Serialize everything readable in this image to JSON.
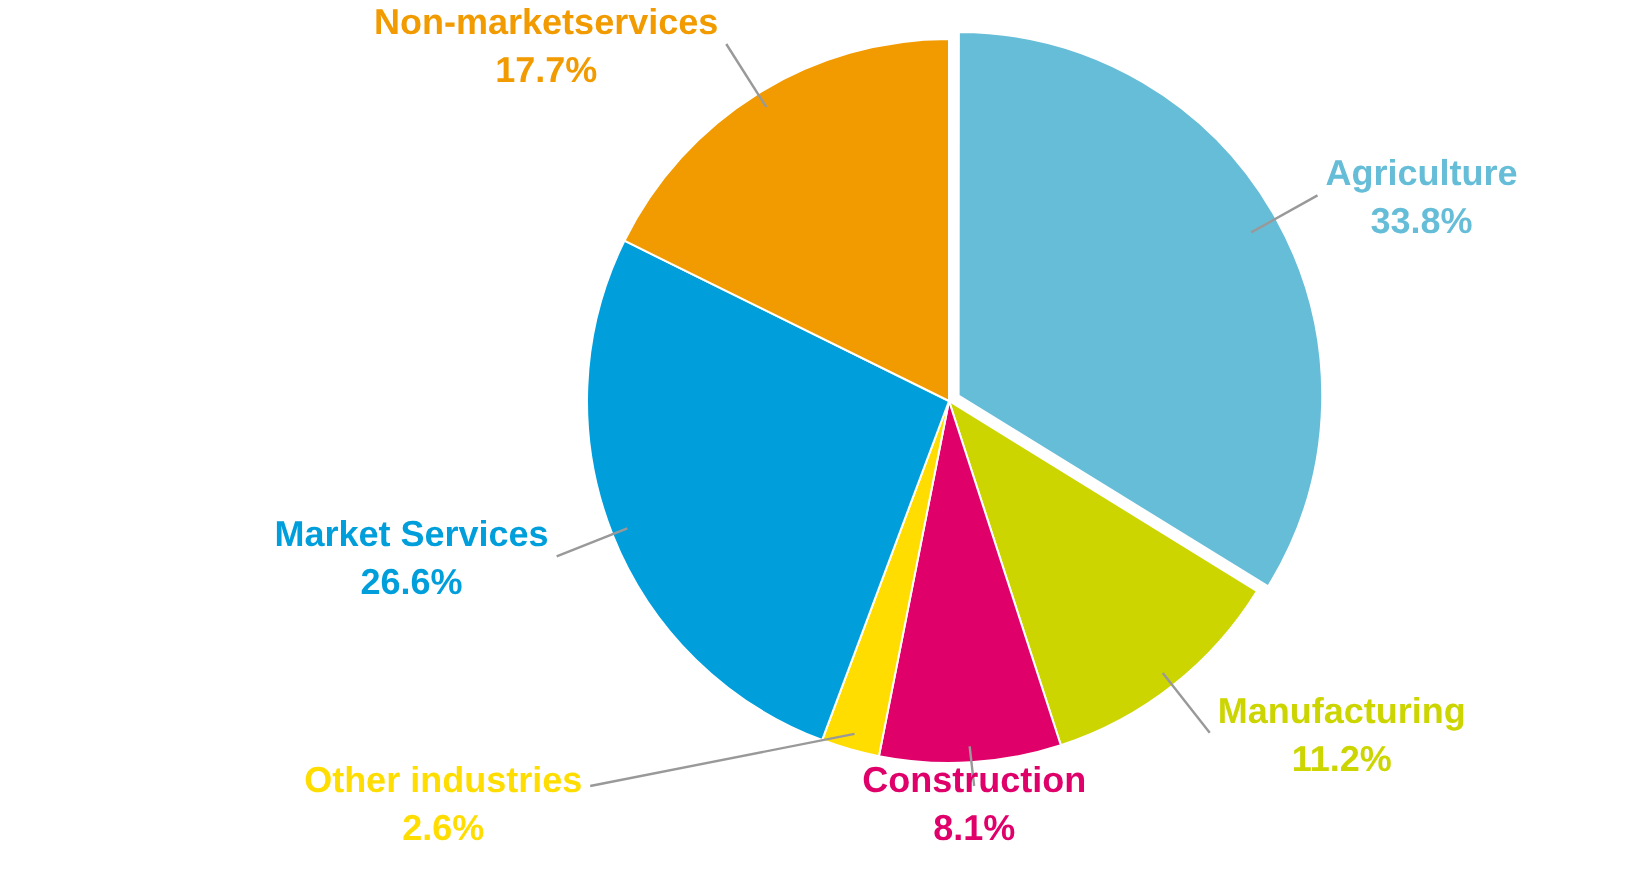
{
  "chart_data": {
    "type": "pie",
    "categories": [
      "Agriculture",
      "Manufacturing",
      "Construction",
      "Other industries",
      "Market Services",
      "Non-marketservices"
    ],
    "values": [
      33.8,
      11.2,
      8.1,
      2.6,
      26.6,
      17.7
    ],
    "colors": [
      "#66bdd8",
      "#cdd500",
      "#e0006a",
      "#ffdd00",
      "#009fdb",
      "#f29b00"
    ],
    "value_labels": [
      "33.8%",
      "11.2%",
      "8.1%",
      "2.6%",
      "26.6%",
      "17.7%"
    ],
    "legend": false
  }
}
